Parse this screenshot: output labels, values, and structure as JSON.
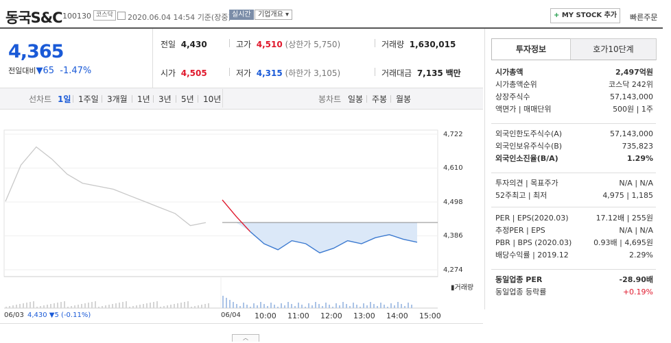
{
  "header": {
    "name": "동국S&C",
    "code": "100130",
    "market": "코스닥",
    "datetime": "2020.06.04 14:54",
    "basis": "기준(장중)",
    "realtime_label": "실시간",
    "company_info_label": "기업개요",
    "mystock_label": "MY STOCK 추가",
    "quick_order_label": "빠른주문"
  },
  "quote": {
    "price": "4,365",
    "change_label": "전일대비",
    "change": "65",
    "change_pct": "-1.47%"
  },
  "stats": {
    "prev_label": "전일",
    "prev": "4,430",
    "high_label": "고가",
    "high": "4,510",
    "high_limit": "(상한가 5,750)",
    "volume_label": "거래량",
    "volume": "1,630,015",
    "open_label": "시가",
    "open": "4,505",
    "low_label": "저가",
    "low": "4,315",
    "low_limit": "(하한가 3,105)",
    "amount_label": "거래대금",
    "amount": "7,135",
    "amount_unit": "백만"
  },
  "chart_tabs": {
    "line_label": "선차트",
    "periods": [
      "1일",
      "1주일",
      "3개월",
      "1년",
      "3년",
      "5년",
      "10년"
    ],
    "active": "1일",
    "candle_label": "봉차트",
    "candle_periods": [
      "일봉",
      "주봉",
      "월봉"
    ]
  },
  "chart_data": {
    "type": "line",
    "y_ticks": [
      "4,722",
      "4,610",
      "4,498",
      "4,386",
      "4,274"
    ],
    "ylim": [
      4274,
      4722
    ],
    "volume_label": "거래량",
    "x_ticks": [
      "06/03",
      "06/04",
      "10:00",
      "11:00",
      "12:00",
      "13:00",
      "14:00",
      "15:00"
    ],
    "prev_day_summary": "4,430 ▼5 (-0.11%)",
    "reference_price": 4430,
    "series": [
      {
        "x": [
          "06/03 09:00",
          "06/03 09:30",
          "06/03 10:00",
          "06/03 10:30",
          "06/03 11:00",
          "06/03 11:30",
          "06/03 12:00",
          "06/03 12:30",
          "06/03 13:00",
          "06/03 13:30",
          "06/03 14:00",
          "06/03 14:30",
          "06/03 15:00",
          "06/03 15:30"
        ],
        "values": [
          4500,
          4620,
          4680,
          4640,
          4590,
          4560,
          4550,
          4540,
          4520,
          4500,
          4480,
          4460,
          4420,
          4430
        ]
      },
      {
        "x": [
          "06/04 09:00",
          "06/04 09:10",
          "06/04 09:20",
          "06/04 09:40",
          "06/04 10:00",
          "06/04 10:30",
          "06/04 11:00",
          "06/04 11:30",
          "06/04 12:00",
          "06/04 12:30",
          "06/04 13:00",
          "06/04 13:30",
          "06/04 14:00",
          "06/04 14:30",
          "06/04 14:54"
        ],
        "values": [
          4505,
          4450,
          4400,
          4360,
          4340,
          4370,
          4360,
          4330,
          4345,
          4370,
          4360,
          4380,
          4390,
          4375,
          4365
        ]
      }
    ]
  },
  "right_panel": {
    "tabs": [
      "투자정보",
      "호가10단계"
    ],
    "active_tab": "투자정보",
    "group1": [
      {
        "label": "시가총액",
        "value": "2,497억원",
        "bold": true
      },
      {
        "label": "시가총액순위",
        "value": "코스닥 242위"
      },
      {
        "label": "상장주식수",
        "value": "57,143,000"
      },
      {
        "label": "액면가 | 매매단위",
        "value": "500원 | 1주"
      }
    ],
    "group2": [
      {
        "label": "외국인한도주식수(A)",
        "value": "57,143,000"
      },
      {
        "label": "외국인보유주식수(B)",
        "value": "735,823"
      },
      {
        "label": "외국인소진율(B/A)",
        "value": "1.29%",
        "bold": true
      }
    ],
    "group3": [
      {
        "label": "투자의견 | 목표주가",
        "value": "N/A | N/A"
      },
      {
        "label": "52주최고 | 최저",
        "value": "4,975 | 1,185"
      }
    ],
    "group4": [
      {
        "label": "PER | EPS(2020.03)",
        "value": "17.12배 | 255원"
      },
      {
        "label": "추정PER | EPS",
        "value": "N/A | N/A"
      },
      {
        "label": "PBR | BPS (2020.03)",
        "value": "0.93배 | 4,695원"
      },
      {
        "label": "배당수익률 | 2019.12",
        "value": "2.29%"
      }
    ],
    "group5": [
      {
        "label": "동일업종 PER",
        "value": "-28.90배",
        "bold": true
      },
      {
        "label": "동일업종 등락률",
        "value": "+0.19%",
        "red": true
      }
    ]
  }
}
